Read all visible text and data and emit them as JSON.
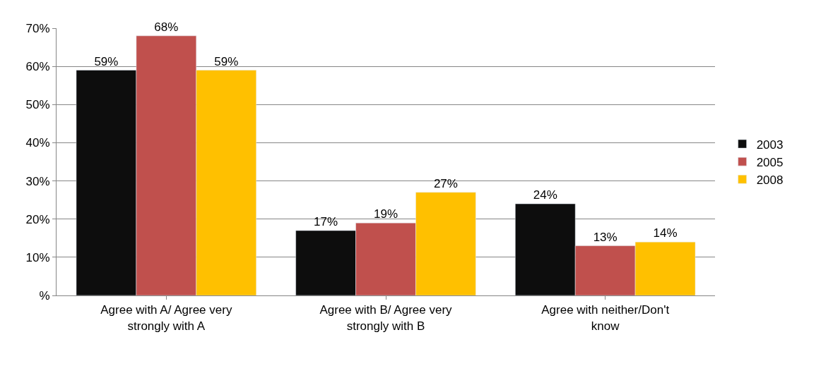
{
  "chart_data": {
    "type": "bar",
    "categories": [
      "Agree with A/ Agree very strongly with A",
      "Agree with B/ Agree very strongly with B",
      "Agree with neither/Don't know"
    ],
    "series": [
      {
        "name": "2003",
        "color": "#0d0d0d",
        "values": [
          59,
          17,
          24
        ],
        "value_labels": [
          "59%",
          "17%",
          "24%"
        ]
      },
      {
        "name": "2005",
        "color": "#c0504d",
        "values": [
          68,
          19,
          13
        ],
        "value_labels": [
          "68%",
          "19%",
          "13%"
        ]
      },
      {
        "name": "2008",
        "color": "#ffc000",
        "values": [
          59,
          27,
          14
        ],
        "value_labels": [
          "59%",
          "27%",
          "14%"
        ]
      }
    ],
    "ylim": [
      0,
      70
    ],
    "yticks": [
      {
        "value": 0,
        "label": "%"
      },
      {
        "value": 10,
        "label": "10%"
      },
      {
        "value": 20,
        "label": "20%"
      },
      {
        "value": 30,
        "label": "30%"
      },
      {
        "value": 40,
        "label": "40%"
      },
      {
        "value": 50,
        "label": "50%"
      },
      {
        "value": 60,
        "label": "60%"
      },
      {
        "value": 70,
        "label": "70%"
      }
    ],
    "grid": "y",
    "legend": "right"
  }
}
